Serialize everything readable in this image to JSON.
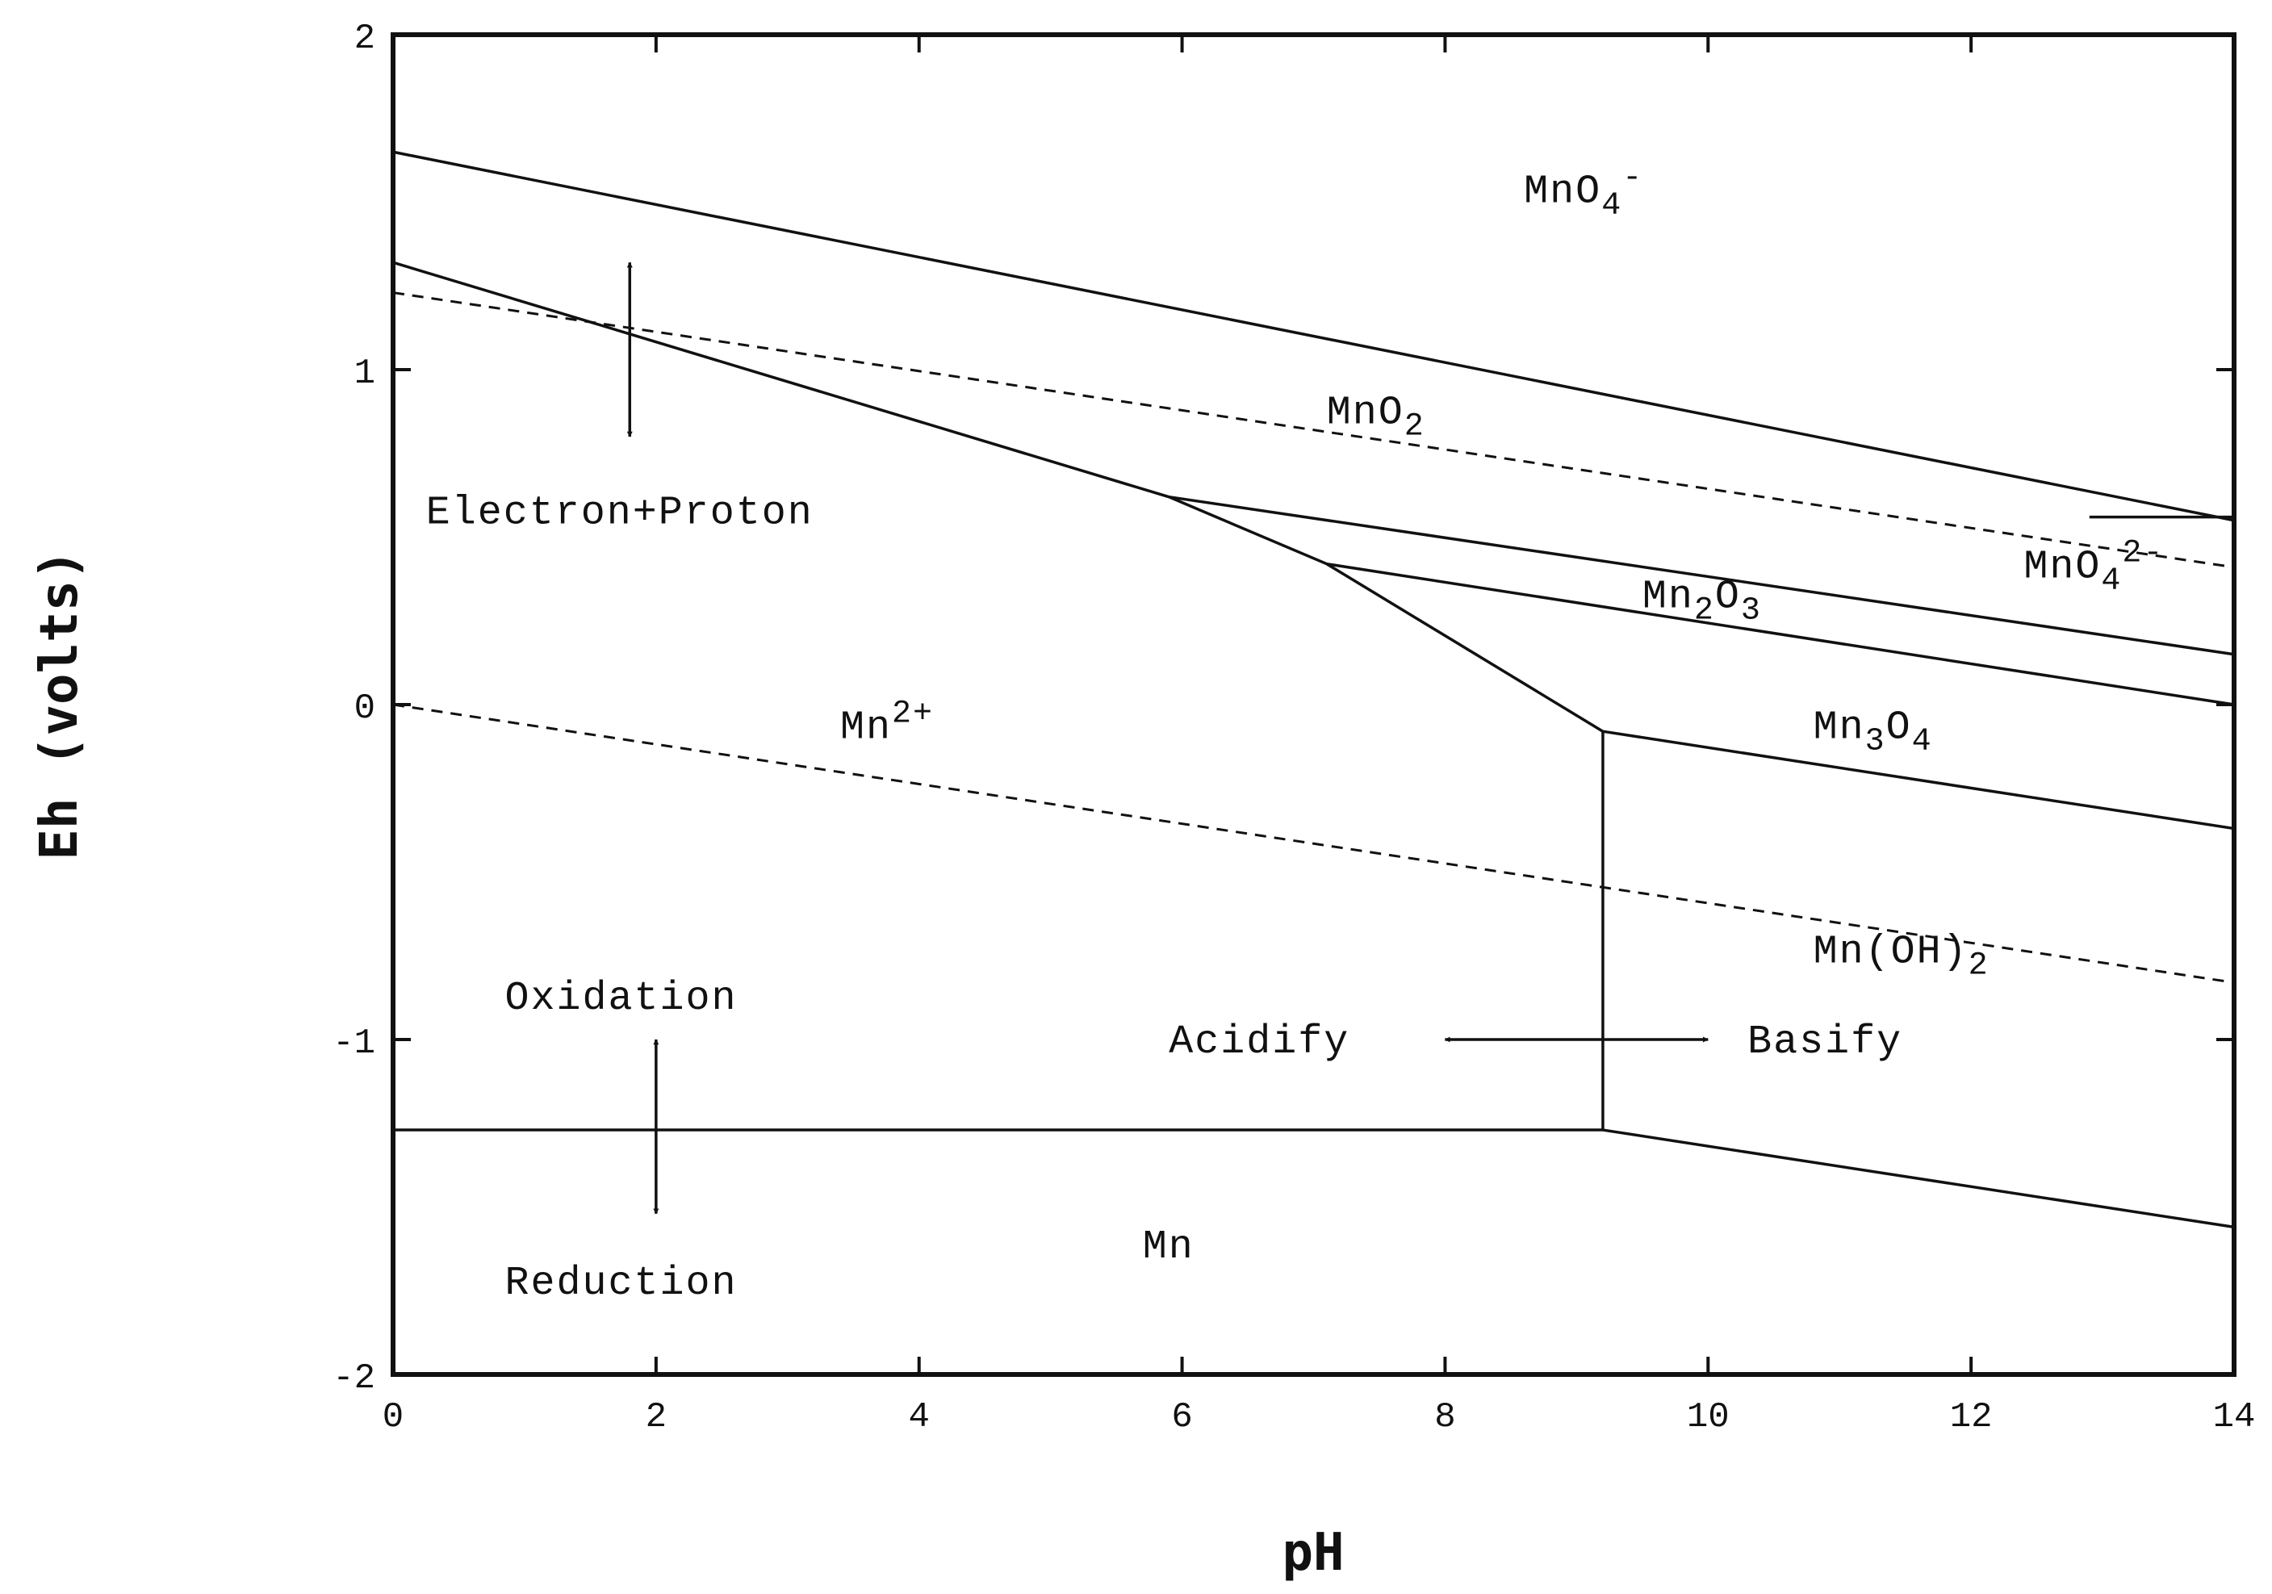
{
  "chart_data": {
    "type": "line",
    "title": "",
    "xlabel": "pH",
    "ylabel": "Eh (volts)",
    "xlim": [
      0,
      14
    ],
    "ylim": [
      -2,
      2
    ],
    "x_ticks": [
      0,
      2,
      4,
      6,
      8,
      10,
      12,
      14
    ],
    "x_tick_labels": [
      "0",
      "2",
      "4",
      "6",
      "8",
      "10",
      "12",
      "14"
    ],
    "y_ticks": [
      2,
      1,
      0,
      -1,
      -2
    ],
    "y_tick_labels": [
      "2",
      "1",
      "0",
      "-1",
      "-2"
    ],
    "grid": false,
    "series": [
      {
        "name": "MnO4- / MnO2 boundary",
        "style": "solid",
        "points": [
          [
            0,
            1.65
          ],
          [
            14,
            0.55
          ]
        ]
      },
      {
        "name": "MnO2 / Mn2+ boundary",
        "style": "solid",
        "points": [
          [
            0,
            1.32
          ],
          [
            5.9,
            0.62
          ],
          [
            7.1,
            0.42
          ],
          [
            9.2,
            -0.08
          ]
        ]
      },
      {
        "name": "MnO2 / Mn2O3 boundary",
        "style": "solid",
        "points": [
          [
            5.9,
            0.62
          ],
          [
            14,
            0.15
          ]
        ]
      },
      {
        "name": "Mn2O3 / Mn3O4 boundary",
        "style": "solid",
        "points": [
          [
            7.1,
            0.42
          ],
          [
            14,
            0.0
          ]
        ]
      },
      {
        "name": "Mn3O4 / Mn(OH)2 boundary",
        "style": "solid",
        "points": [
          [
            9.2,
            -0.08
          ],
          [
            14,
            -0.37
          ]
        ]
      },
      {
        "name": "Mn2+ / Mn(OH)2 boundary",
        "style": "solid",
        "points": [
          [
            9.2,
            -0.08
          ],
          [
            9.2,
            -1.27
          ]
        ]
      },
      {
        "name": "Mn2+ / Mn boundary",
        "style": "solid",
        "points": [
          [
            0,
            -1.27
          ],
          [
            9.2,
            -1.27
          ]
        ]
      },
      {
        "name": "Mn(OH)2 / Mn boundary",
        "style": "solid",
        "points": [
          [
            9.2,
            -1.27
          ],
          [
            14,
            -1.56
          ]
        ]
      },
      {
        "name": "MnO4- / MnO4 2- boundary",
        "style": "solid",
        "points": [
          [
            12.9,
            0.56
          ],
          [
            14,
            0.56
          ]
        ]
      },
      {
        "name": "water oxidation limit",
        "style": "dashed",
        "points": [
          [
            0,
            1.23
          ],
          [
            14,
            0.41
          ]
        ]
      },
      {
        "name": "water reduction limit",
        "style": "dashed",
        "points": [
          [
            0,
            0.0
          ],
          [
            14,
            -0.83
          ]
        ]
      }
    ],
    "region_labels": [
      {
        "text": "MnO",
        "sub": "4",
        "sup": "-",
        "x": 8.6,
        "y": 1.5
      },
      {
        "text": "MnO",
        "sub": "2",
        "sup": "",
        "x": 7.1,
        "y": 0.84
      },
      {
        "text": "MnO",
        "sub": "4",
        "sup": "2-",
        "x": 12.4,
        "y": 0.38
      },
      {
        "text": "Mn",
        "sub": "2",
        "sup": "",
        "text2": "O",
        "sub2": "3",
        "x": 9.5,
        "y": 0.29
      },
      {
        "text": "Mn",
        "sub": "",
        "sup": "2+",
        "x": 3.4,
        "y": -0.1
      },
      {
        "text": "Mn",
        "sub": "3",
        "sup": "",
        "text2": "O",
        "sub2": "4",
        "x": 10.8,
        "y": -0.1
      },
      {
        "text": "Mn(OH)",
        "sub": "2",
        "sup": "",
        "x": 10.8,
        "y": -0.77
      },
      {
        "text": "Mn",
        "sub": "",
        "sup": "",
        "x": 5.7,
        "y": -1.65
      }
    ],
    "annotations": [
      {
        "text": "Electron+Proton",
        "x": 0.25,
        "y": 0.58
      },
      {
        "text": "Oxidation",
        "x": 0.85,
        "y": -0.87
      },
      {
        "text": "Reduction",
        "x": 0.85,
        "y": -1.72
      },
      {
        "text": "Acidify",
        "x": 5.9,
        "y": -1.0
      },
      {
        "text": "Basify",
        "x": 10.3,
        "y": -1.0
      }
    ],
    "arrows": [
      {
        "name": "electron-proton-arrow",
        "from": [
          1.8,
          0.8
        ],
        "to": [
          1.8,
          1.32
        ],
        "double": true
      },
      {
        "name": "oxidation-reduction-arrow",
        "from": [
          2.0,
          -1.52
        ],
        "to": [
          2.0,
          -1.0
        ],
        "double": true
      },
      {
        "name": "acidify-basify-arrow",
        "from": [
          8.0,
          -1.0
        ],
        "to": [
          10.0,
          -1.0
        ],
        "double": true
      }
    ]
  }
}
